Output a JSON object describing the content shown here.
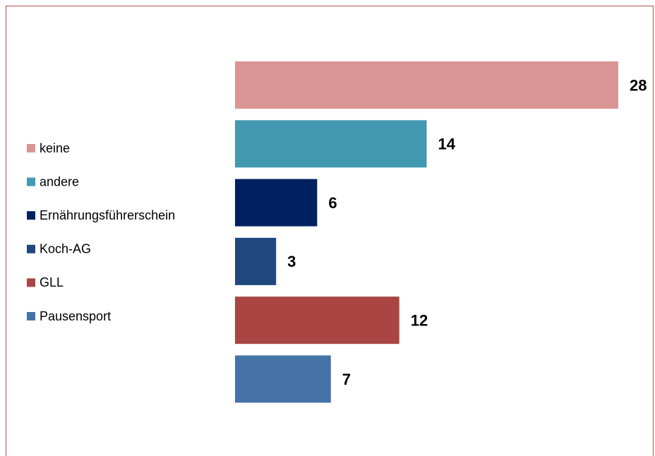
{
  "chart_data": {
    "type": "bar",
    "legend": "left",
    "series": [
      {
        "name": "keine",
        "color": "#d99694",
        "values": [
          28
        ]
      },
      {
        "name": "andere",
        "color": "#4299b1",
        "values": [
          14
        ]
      },
      {
        "name": "Ernährungsführerschein",
        "color": "#002060",
        "values": [
          6
        ]
      },
      {
        "name": "Koch-AG",
        "color": "#1f497d",
        "values": [
          3
        ]
      },
      {
        "name": "GLL",
        "color": "#a94542",
        "values": [
          12
        ]
      },
      {
        "name": "Pausensport",
        "color": "#4573a8",
        "values": [
          7
        ]
      }
    ]
  }
}
